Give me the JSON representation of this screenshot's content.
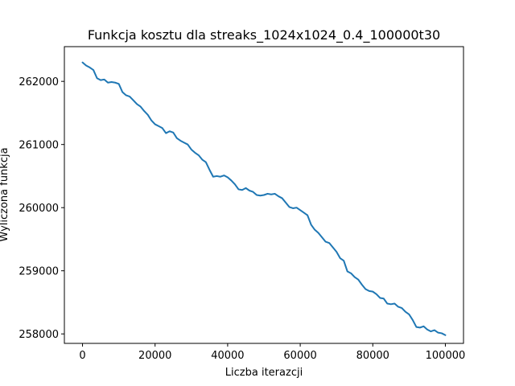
{
  "chart_data": {
    "type": "line",
    "title": "Funkcja kosztu dla streaks_1024x1024_0.4_100000t30",
    "xlabel": "Liczba iterazcji",
    "ylabel": "Wyliczona funkcja",
    "xlim": [
      -5000,
      105000
    ],
    "ylim": [
      257850,
      262550
    ],
    "x_ticks": [
      0,
      20000,
      40000,
      60000,
      80000,
      100000
    ],
    "x_tick_labels": [
      "0",
      "20000",
      "40000",
      "60000",
      "80000",
      "100000"
    ],
    "y_ticks": [
      258000,
      259000,
      260000,
      261000,
      262000
    ],
    "y_tick_labels": [
      "258000",
      "259000",
      "260000",
      "261000",
      "262000"
    ],
    "grid": false,
    "line_color": "#1f77b4",
    "series": [
      {
        "x": [
          0,
          1000,
          2000,
          3000,
          4000,
          5000,
          6000,
          7000,
          8000,
          9000,
          10000,
          11000,
          12000,
          13000,
          14000,
          15000,
          16000,
          17000,
          18000,
          19000,
          20000,
          21000,
          22000,
          23000,
          24000,
          25000,
          26000,
          27000,
          28000,
          29000,
          30000,
          31000,
          32000,
          33000,
          34000,
          35000,
          36000,
          37000,
          38000,
          39000,
          40000,
          41000,
          42000,
          43000,
          44000,
          45000,
          46000,
          47000,
          48000,
          49000,
          50000,
          51000,
          52000,
          53000,
          54000,
          55000,
          56000,
          57000,
          58000,
          59000,
          60000,
          61000,
          62000,
          63000,
          64000,
          65000,
          66000,
          67000,
          68000,
          69000,
          70000,
          71000,
          72000,
          73000,
          74000,
          75000,
          76000,
          77000,
          78000,
          79000,
          80000,
          81000,
          82000,
          83000,
          84000,
          85000,
          86000,
          87000,
          88000,
          89000,
          90000,
          91000,
          92000,
          93000,
          94000,
          95000,
          96000,
          97000,
          98000,
          99000,
          100000
        ],
        "y": [
          262300,
          262250,
          262220,
          262180,
          262050,
          262020,
          262030,
          261980,
          261990,
          261980,
          261960,
          261830,
          261780,
          261760,
          261700,
          261640,
          261600,
          261530,
          261470,
          261380,
          261320,
          261290,
          261260,
          261180,
          261210,
          261190,
          261100,
          261060,
          261030,
          261000,
          260920,
          260870,
          260830,
          260760,
          260720,
          260600,
          260490,
          260500,
          260490,
          260510,
          260480,
          260430,
          260370,
          260290,
          260280,
          260310,
          260270,
          260250,
          260200,
          260190,
          260200,
          260220,
          260210,
          260220,
          260180,
          260150,
          260080,
          260010,
          259990,
          260000,
          259960,
          259920,
          259880,
          259730,
          259650,
          259600,
          259530,
          259460,
          259440,
          259370,
          259300,
          259200,
          259160,
          258990,
          258960,
          258900,
          258860,
          258780,
          258710,
          258680,
          258670,
          258630,
          258570,
          258560,
          258480,
          258470,
          258480,
          258430,
          258410,
          258350,
          258310,
          258220,
          258110,
          258100,
          258120,
          258070,
          258040,
          258060,
          258020,
          258010,
          257980
        ]
      }
    ]
  }
}
